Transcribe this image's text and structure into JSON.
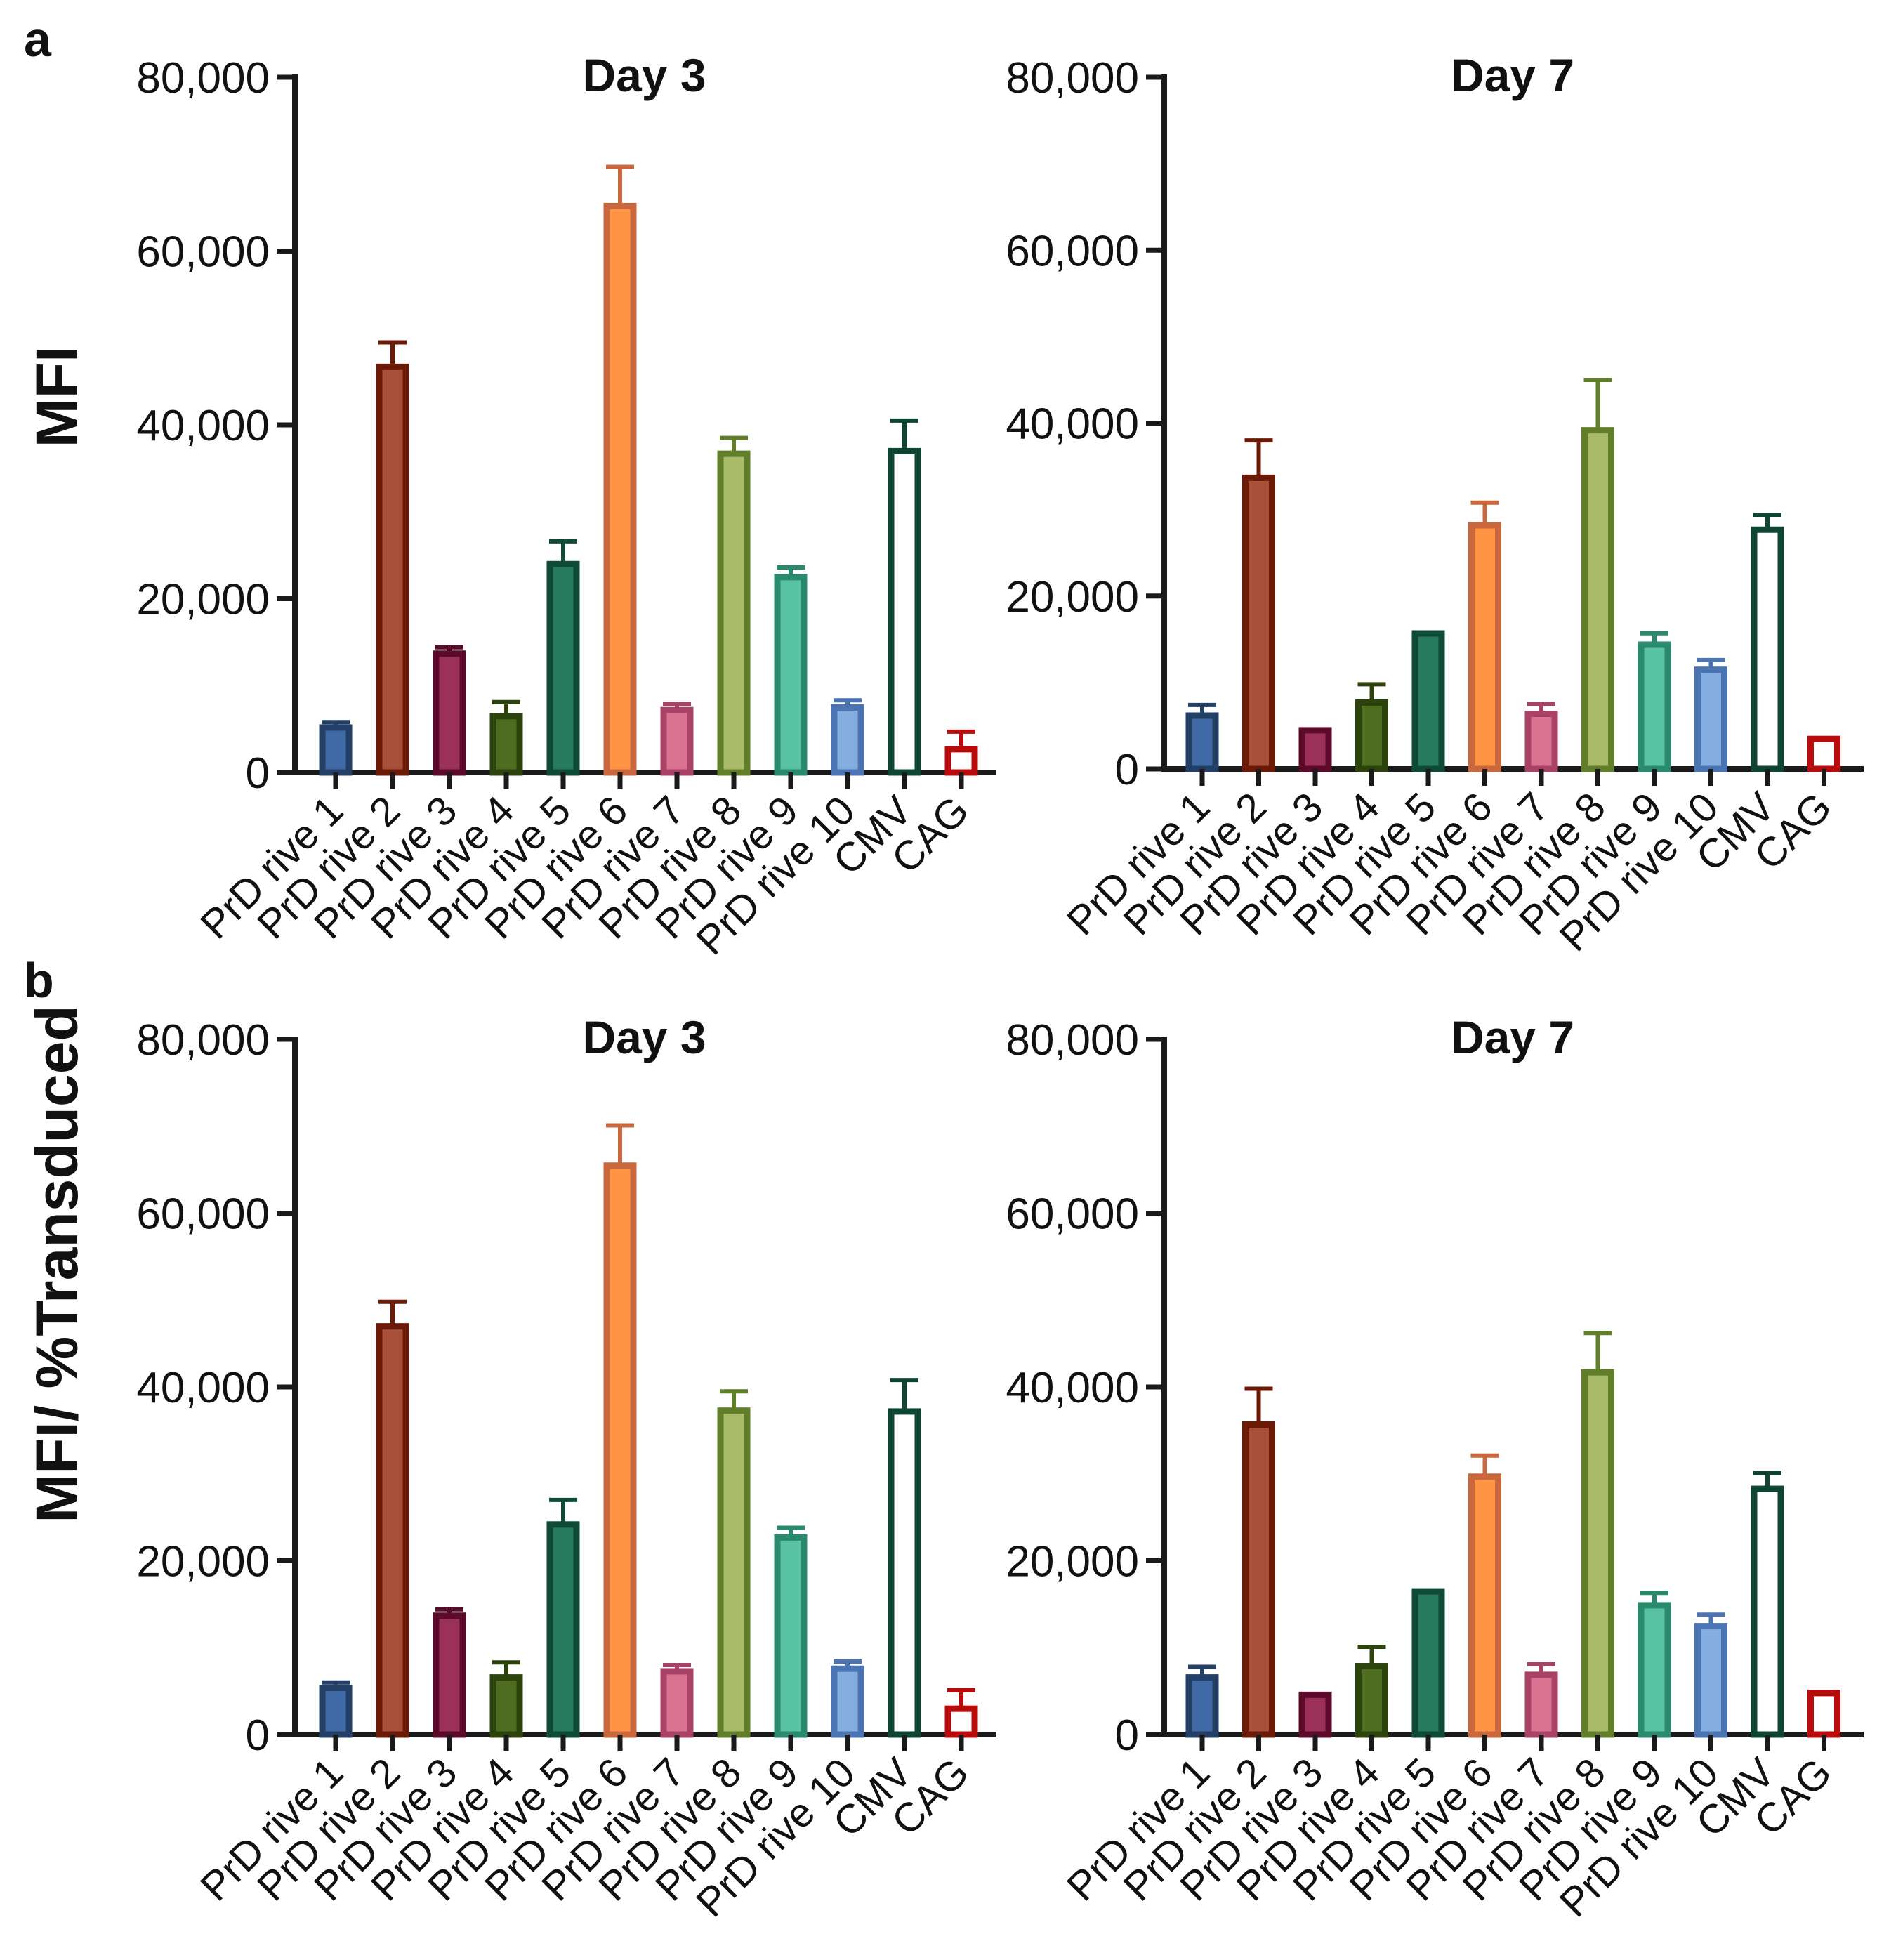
{
  "panels": [
    {
      "letter": "a",
      "ylabel": "MFI"
    },
    {
      "letter": "b",
      "ylabel": "MFI/ %Transduced"
    }
  ],
  "chart_data": [
    {
      "type": "bar",
      "panel": "a",
      "title": "Day 3",
      "ylabel": "MFI",
      "categories": [
        "PrD rive 1",
        "PrD rive 2",
        "PrD rive 3",
        "PrD rive 4",
        "PrD rive 5",
        "PrD rive 6",
        "PrD rive 7",
        "PrD rive 8",
        "PrD rive 9",
        "PrD rive 10",
        "CMV",
        "CAG"
      ],
      "values": [
        5500,
        47000,
        14000,
        6800,
        24300,
        65500,
        7500,
        37000,
        22800,
        7800,
        37300,
        3000
      ],
      "errors": [
        300,
        2500,
        400,
        1300,
        2300,
        4200,
        400,
        1500,
        800,
        500,
        3200,
        1700
      ],
      "yticks": [
        "0",
        "20,000",
        "40,000",
        "60,000",
        "80,000"
      ],
      "ylim": [
        0,
        80000
      ]
    },
    {
      "type": "bar",
      "panel": "a",
      "title": "Day 7",
      "ylabel": "",
      "categories": [
        "PrD rive 1",
        "PrD rive 2",
        "PrD rive 3",
        "PrD rive 4",
        "PrD rive 5",
        "PrD rive 6",
        "PrD rive 7",
        "PrD rive 8",
        "PrD rive 9",
        "PrD rive 10",
        "CMV",
        "CAG"
      ],
      "values": [
        6500,
        34000,
        4800,
        8000,
        16000,
        28500,
        6700,
        39500,
        14700,
        11800,
        28000,
        3800
      ],
      "errors": [
        900,
        4000,
        0,
        1800,
        0,
        2300,
        800,
        5500,
        1000,
        800,
        1400,
        0
      ],
      "yticks": [
        "0",
        "20,000",
        "40,000",
        "60,000",
        "80,000"
      ],
      "ylim": [
        0,
        80000
      ]
    },
    {
      "type": "bar",
      "panel": "b",
      "title": "Day 3",
      "ylabel": "MFI/ %Transduced",
      "categories": [
        "PrD rive 1",
        "PrD rive 2",
        "PrD rive 3",
        "PrD rive 4",
        "PrD rive 5",
        "PrD rive 6",
        "PrD rive 7",
        "PrD rive 8",
        "PrD rive 9",
        "PrD rive 10",
        "CMV",
        "CAG"
      ],
      "values": [
        5700,
        47300,
        14000,
        6900,
        24500,
        65800,
        7600,
        37600,
        23000,
        7900,
        37500,
        3300
      ],
      "errors": [
        300,
        2500,
        400,
        1400,
        2500,
        4300,
        400,
        1900,
        800,
        500,
        3300,
        1800
      ],
      "yticks": [
        "0",
        "20,000",
        "40,000",
        "60,000",
        "80,000"
      ],
      "ylim": [
        0,
        80000
      ]
    },
    {
      "type": "bar",
      "panel": "b",
      "title": "Day 7",
      "ylabel": "",
      "categories": [
        "PrD rive 1",
        "PrD rive 2",
        "PrD rive 3",
        "PrD rive 4",
        "PrD rive 5",
        "PrD rive 6",
        "PrD rive 7",
        "PrD rive 8",
        "PrD rive 9",
        "PrD rive 10",
        "CMV",
        "CAG"
      ],
      "values": [
        6900,
        36000,
        4900,
        8200,
        16800,
        30000,
        7200,
        42000,
        15200,
        12800,
        28600,
        5100
      ],
      "errors": [
        900,
        3800,
        0,
        1900,
        0,
        2100,
        900,
        4200,
        1100,
        1000,
        1500,
        0
      ],
      "yticks": [
        "0",
        "20,000",
        "40,000",
        "60,000",
        "80,000"
      ],
      "ylim": [
        0,
        80000
      ]
    }
  ],
  "colors": {
    "bars": [
      {
        "fill": "#3f6aa6",
        "stroke": "#243f66"
      },
      {
        "fill": "#a8503a",
        "stroke": "#6b1a08"
      },
      {
        "fill": "#9c3158",
        "stroke": "#5b0b29"
      },
      {
        "fill": "#4f6d1e",
        "stroke": "#2c430d"
      },
      {
        "fill": "#267a5e",
        "stroke": "#0f4a35"
      },
      {
        "fill": "#ff9445",
        "stroke": "#c9683e"
      },
      {
        "fill": "#da7392",
        "stroke": "#a84267"
      },
      {
        "fill": "#a9ba68",
        "stroke": "#617f2a"
      },
      {
        "fill": "#59c2a0",
        "stroke": "#2a8a6d"
      },
      {
        "fill": "#84aee0",
        "stroke": "#4b74b3"
      },
      {
        "fill": "#ffffff",
        "stroke": "#0e4530"
      },
      {
        "fill": "#ffffff",
        "stroke": "#b80c0c"
      }
    ]
  }
}
